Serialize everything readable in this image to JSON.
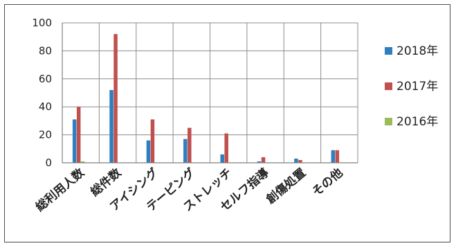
{
  "chart_data": {
    "type": "bar",
    "title": "",
    "xlabel": "",
    "ylabel": "",
    "ylim": [
      0,
      100
    ],
    "yticks": [
      0,
      20,
      40,
      60,
      80,
      100
    ],
    "grid": true,
    "legend_position": "right",
    "categories": [
      "総利用人数",
      "総件数",
      "アイシング",
      "テーピング",
      "ストレッチ",
      "セルフ指導",
      "創傷処置",
      "その他"
    ],
    "series": [
      {
        "name": "2018年",
        "color": "#2f7fbf",
        "values": [
          31,
          52,
          16,
          17,
          6,
          1,
          3,
          9
        ]
      },
      {
        "name": "2017年",
        "color": "#c0504d",
        "values": [
          40,
          92,
          31,
          25,
          21,
          4,
          2,
          9
        ]
      },
      {
        "name": "2016年",
        "color": "#9bbb59",
        "values": [
          1,
          0,
          0,
          0,
          0,
          0,
          0,
          0
        ]
      }
    ]
  }
}
